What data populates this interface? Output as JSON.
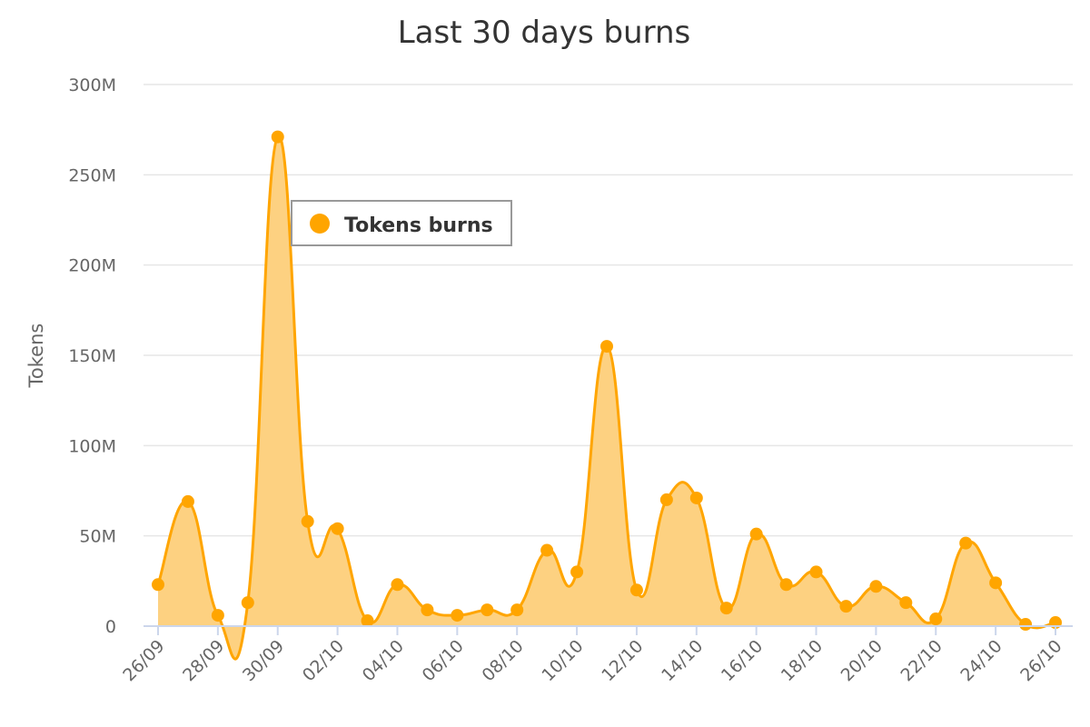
{
  "chart_data": {
    "type": "area",
    "title": "Last 30 days burns",
    "ylabel": "Tokens",
    "xlabel": "",
    "ylim": [
      0,
      300000000
    ],
    "yticks": [
      0,
      50000000,
      100000000,
      150000000,
      200000000,
      250000000,
      300000000
    ],
    "ytick_labels": [
      "0",
      "50M",
      "100M",
      "150M",
      "200M",
      "250M",
      "300M"
    ],
    "grid": true,
    "legend_position": "top-left",
    "color": "#FFA500",
    "fill_color": "#FDD181",
    "x": [
      "2023-09-26",
      "2023-09-27",
      "2023-09-28",
      "2023-09-29",
      "2023-09-30",
      "2023-10-01",
      "2023-10-02",
      "2023-10-03",
      "2023-10-04",
      "2023-10-05",
      "2023-10-06",
      "2023-10-07",
      "2023-10-08",
      "2023-10-09",
      "2023-10-10",
      "2023-10-11",
      "2023-10-12",
      "2023-10-13",
      "2023-10-14",
      "2023-10-15",
      "2023-10-16",
      "2023-10-17",
      "2023-10-18",
      "2023-10-19",
      "2023-10-20",
      "2023-10-21",
      "2023-10-22",
      "2023-10-23",
      "2023-10-24",
      "2023-10-25",
      "2023-10-26"
    ],
    "xtick_labels": [
      "26/09",
      "28/09",
      "30/09",
      "02/10",
      "04/10",
      "06/10",
      "08/10",
      "10/10",
      "12/10",
      "14/10",
      "16/10",
      "18/10",
      "20/10",
      "22/10",
      "24/10",
      "26/10"
    ],
    "series": [
      {
        "name": "Tokens burns",
        "values": [
          23000000,
          69000000,
          6000000,
          13000000,
          271000000,
          58000000,
          54000000,
          3000000,
          23000000,
          9000000,
          6000000,
          9000000,
          9000000,
          42000000,
          30000000,
          155000000,
          20000000,
          70000000,
          71000000,
          10000000,
          51000000,
          23000000,
          30000000,
          11000000,
          22000000,
          13000000,
          4000000,
          46000000,
          24000000,
          1000000,
          2000000
        ]
      }
    ]
  }
}
